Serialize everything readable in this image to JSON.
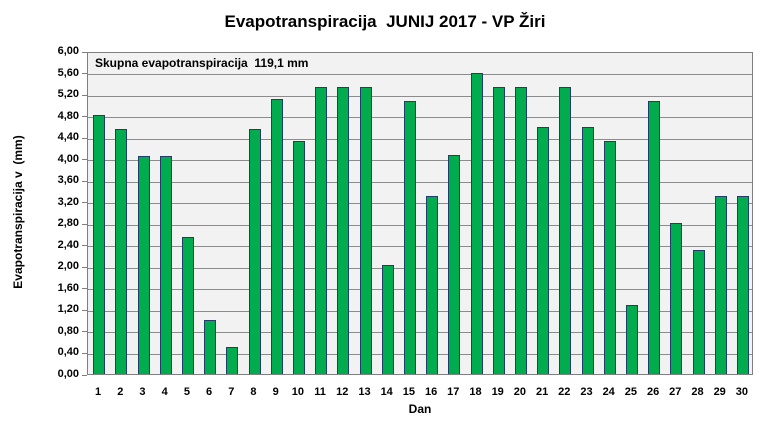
{
  "chart_data": {
    "type": "bar",
    "title": "Evapotranspiracija  JUNIJ 2017 - VP Žiri",
    "annotation": "Skupna evapotranspiracija  119,1 mm",
    "xlabel": "Dan",
    "ylabel": "Evapotranspiracija v  (mm)",
    "ylim": [
      0,
      6
    ],
    "y_step": 0.4,
    "grid": true,
    "legend": "none",
    "y_tick_labels": [
      "6,00",
      "5,60",
      "5,20",
      "4,80",
      "4,40",
      "4,00",
      "3,60",
      "3,20",
      "2,80",
      "2,40",
      "2,00",
      "1,60",
      "1,20",
      "0,80",
      "0,40",
      "0,00"
    ],
    "categories": [
      "1",
      "2",
      "3",
      "4",
      "5",
      "6",
      "7",
      "8",
      "9",
      "10",
      "11",
      "12",
      "13",
      "14",
      "15",
      "16",
      "17",
      "18",
      "19",
      "20",
      "21",
      "22",
      "23",
      "24",
      "25",
      "26",
      "27",
      "28",
      "29",
      "30"
    ],
    "values": [
      4.81,
      4.56,
      4.05,
      4.05,
      2.55,
      1.0,
      0.5,
      4.56,
      5.1,
      4.33,
      5.33,
      5.33,
      5.33,
      2.03,
      5.08,
      3.3,
      4.06,
      5.6,
      5.33,
      5.33,
      4.58,
      5.33,
      4.58,
      4.33,
      1.28,
      5.08,
      2.8,
      2.3,
      3.3,
      3.3
    ],
    "total_mm": "119,1",
    "colors": {
      "bar_fill": "#00AC4E",
      "bar_border": "#1F3E68",
      "plot_bg": "#F2F2F2",
      "gridline": "#8C8C8C",
      "plot_border": "#7F7F7F",
      "annotation_border": "#4D4D4D",
      "text": "#000000",
      "background": "#FFFFFF"
    }
  }
}
